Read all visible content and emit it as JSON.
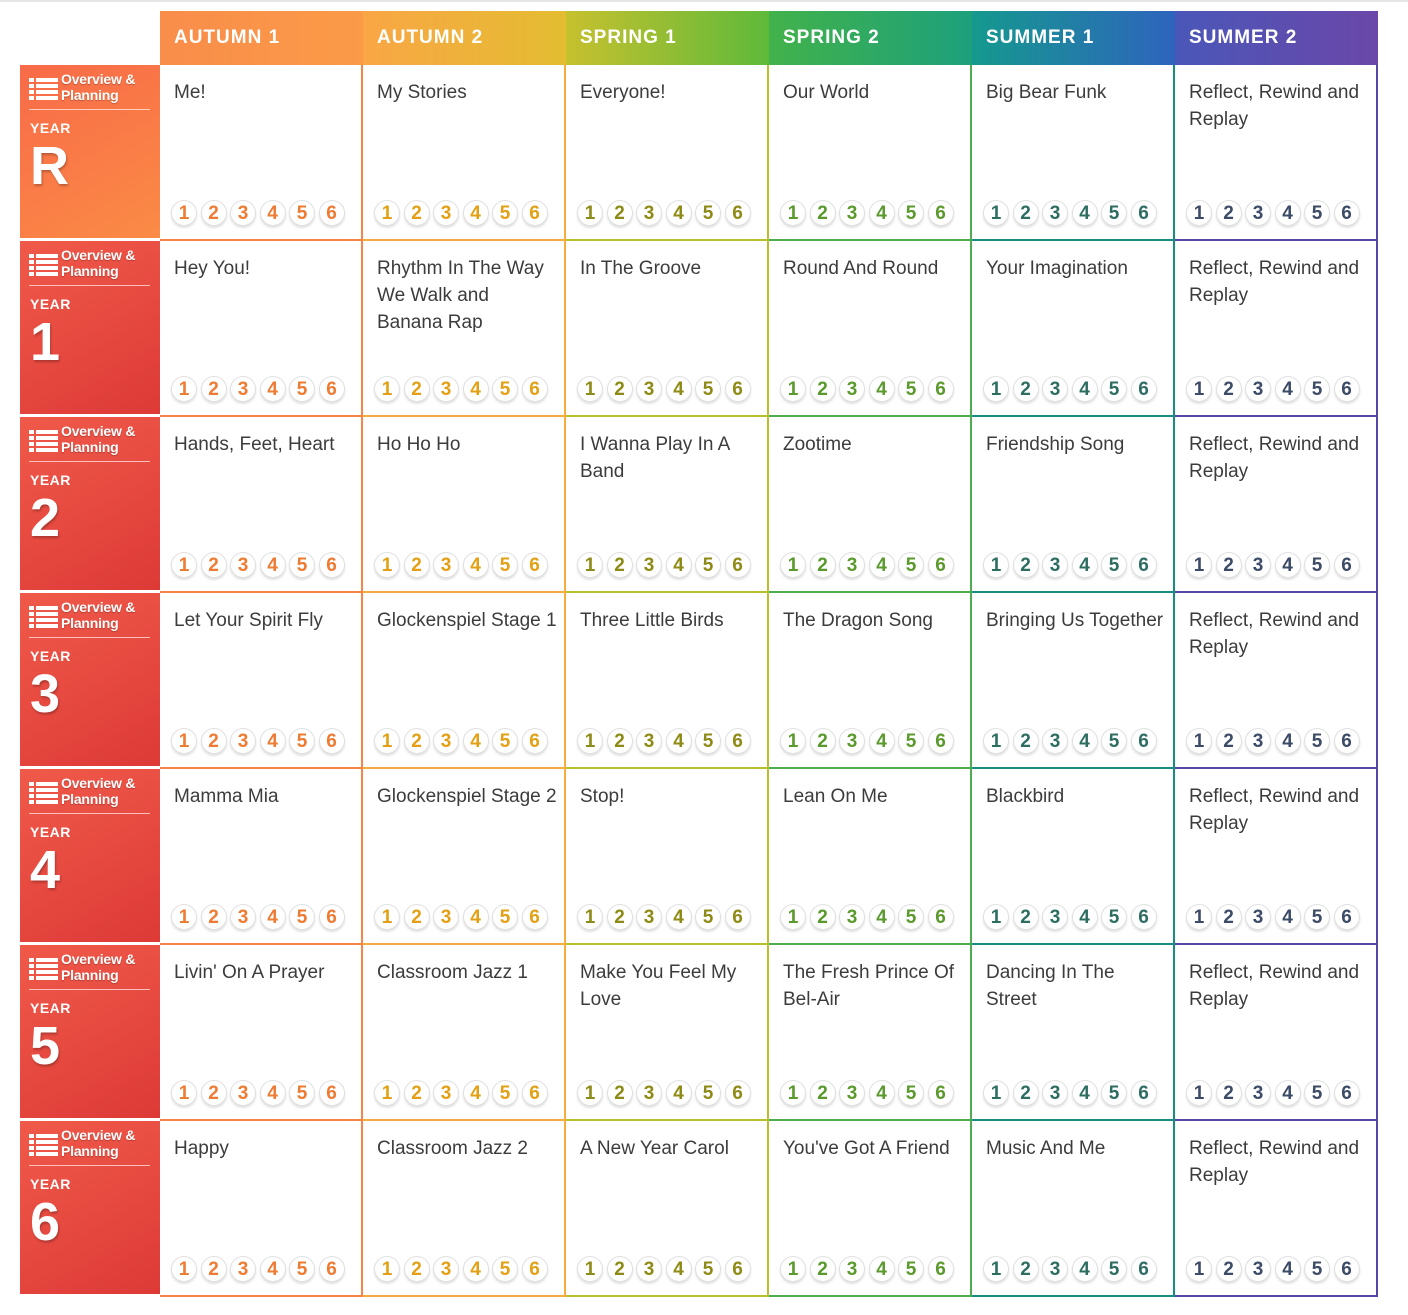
{
  "terms": [
    {
      "label": "AUTUMN 1",
      "gradient": [
        "#f98d4a",
        "#fa9b48"
      ],
      "color": "#f58446",
      "digit": "#ee7b33"
    },
    {
      "label": "AUTUMN 2",
      "gradient": [
        "#f9a645",
        "#e3bd31"
      ],
      "color": "#f4ac3e",
      "digit": "#e4a015"
    },
    {
      "label": "SPRING 1",
      "gradient": [
        "#c6c12e",
        "#5fb93a"
      ],
      "color": "#b9c02b",
      "digit": "#8e8a16"
    },
    {
      "label": "SPRING 2",
      "gradient": [
        "#42b24a",
        "#1da07c"
      ],
      "color": "#4dad4f",
      "digit": "#5a9a2c"
    },
    {
      "label": "SUMMER 1",
      "gradient": [
        "#15998e",
        "#2e64bd"
      ],
      "color": "#15907f",
      "digit": "#2e6d62"
    },
    {
      "label": "SUMMER 2",
      "gradient": [
        "#4a57b8",
        "#6a47a8"
      ],
      "color": "#5348a8",
      "digit": "#3c4b66"
    }
  ],
  "overview_label": "Overview &\nPlanning",
  "year_word": "YEAR",
  "lesson_numbers": [
    "1",
    "2",
    "3",
    "4",
    "5",
    "6"
  ],
  "years": [
    {
      "value": "R",
      "units": [
        "Me!",
        "My Stories",
        "Everyone!",
        "Our World",
        "Big Bear Funk",
        "Reflect, Rewind and Replay"
      ]
    },
    {
      "value": "1",
      "units": [
        "Hey You!",
        "Rhythm In The Way We Walk and Banana Rap",
        "In The Groove",
        "Round And Round",
        "Your Imagination",
        "Reflect, Rewind and Replay"
      ]
    },
    {
      "value": "2",
      "units": [
        "Hands, Feet, Heart",
        "Ho Ho Ho",
        "I Wanna Play In A Band",
        "Zootime",
        "Friendship Song",
        "Reflect, Rewind and Replay"
      ]
    },
    {
      "value": "3",
      "units": [
        "Let Your Spirit Fly",
        "Glockenspiel Stage 1",
        "Three Little Birds",
        "The Dragon Song",
        "Bringing Us Together",
        "Reflect, Rewind and Replay"
      ]
    },
    {
      "value": "4",
      "units": [
        "Mamma Mia",
        "Glockenspiel Stage 2",
        "Stop!",
        "Lean On Me",
        "Blackbird",
        "Reflect, Rewind and Replay"
      ]
    },
    {
      "value": "5",
      "units": [
        "Livin' On A Prayer",
        "Classroom Jazz 1",
        "Make You Feel My Love",
        "The Fresh Prince Of Bel-Air",
        "Dancing In The Street",
        "Reflect, Rewind and Replay"
      ]
    },
    {
      "value": "6",
      "units": [
        "Happy",
        "Classroom Jazz 2",
        "A New Year Carol",
        "You've Got A Friend",
        "Music And Me",
        "Reflect, Rewind and Replay"
      ]
    }
  ]
}
